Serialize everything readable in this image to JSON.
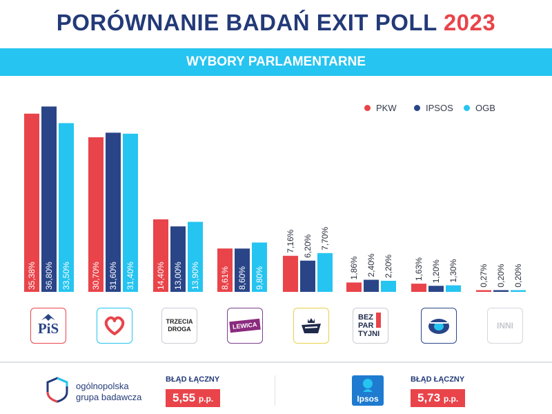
{
  "header": {
    "title": "PORÓWNANIE BADAŃ EXIT POLL",
    "year": "2023",
    "subtitle": "WYBORY PARLAMENTARNE"
  },
  "colors": {
    "title": "#233a78",
    "accent_red": "#e8444a",
    "band": "#26c4f0",
    "pkw": "#e8444a",
    "ipsos": "#2a4587",
    "ogb": "#26c4f0"
  },
  "legend": [
    {
      "name": "PKW",
      "color": "#e8444a"
    },
    {
      "name": "IPSOS",
      "color": "#2a4587"
    },
    {
      "name": "OGB",
      "color": "#26c4f0"
    }
  ],
  "chart_data": {
    "type": "bar",
    "categories": [
      "PiS",
      "KO",
      "Trzecia Droga",
      "Lewica",
      "Konfederacja",
      "Bezpartyjni Samorządowcy",
      "Polska Jest Jedna",
      "INNI"
    ],
    "series": [
      {
        "name": "PKW",
        "values": [
          35.38,
          30.7,
          14.4,
          8.61,
          7.16,
          1.86,
          1.63,
          0.27
        ],
        "labels": [
          "35,38%",
          "30,70%",
          "14,40%",
          "8,61%",
          "7,16%",
          "1,86%",
          "1,63%",
          "0,27%"
        ]
      },
      {
        "name": "IPSOS",
        "values": [
          36.8,
          31.6,
          13.0,
          8.6,
          6.2,
          2.4,
          1.2,
          0.2
        ],
        "labels": [
          "36,80%",
          "31,60%",
          "13,00%",
          "8,60%",
          "6,20%",
          "2,40%",
          "1,20%",
          "0,20%"
        ]
      },
      {
        "name": "OGB",
        "values": [
          33.5,
          31.4,
          13.9,
          9.8,
          7.7,
          2.2,
          1.3,
          0.2
        ],
        "labels": [
          "33,50%",
          "31,40%",
          "13,90%",
          "9,80%",
          "7,70%",
          "2,20%",
          "1,30%",
          "0,20%"
        ]
      }
    ],
    "legend_position": "top-right",
    "grid": false
  },
  "logos": {
    "pis": "PiS",
    "ko": "heart-icon",
    "trzecia_line1": "TRZECIA",
    "trzecia_line2": "DROGA",
    "lewica": "LEWICA",
    "konf": "crown-ship-icon",
    "bez1": "BEZ",
    "bez2": "PAR",
    "bez3": "TYJNI",
    "pjj": "pjj-icon",
    "inni": "INNI"
  },
  "footer": {
    "ogb_name_line1": "ogólnopolska",
    "ogb_name_line2": "grupa badawcza",
    "ogb_error_label": "BŁĄD ŁĄCZNY",
    "ogb_error_value": "5,55",
    "ipsos_logo_text": "Ipsos",
    "ipsos_error_label": "BŁĄD ŁĄCZNY",
    "ipsos_error_value": "5,73",
    "unit": "p.p."
  }
}
